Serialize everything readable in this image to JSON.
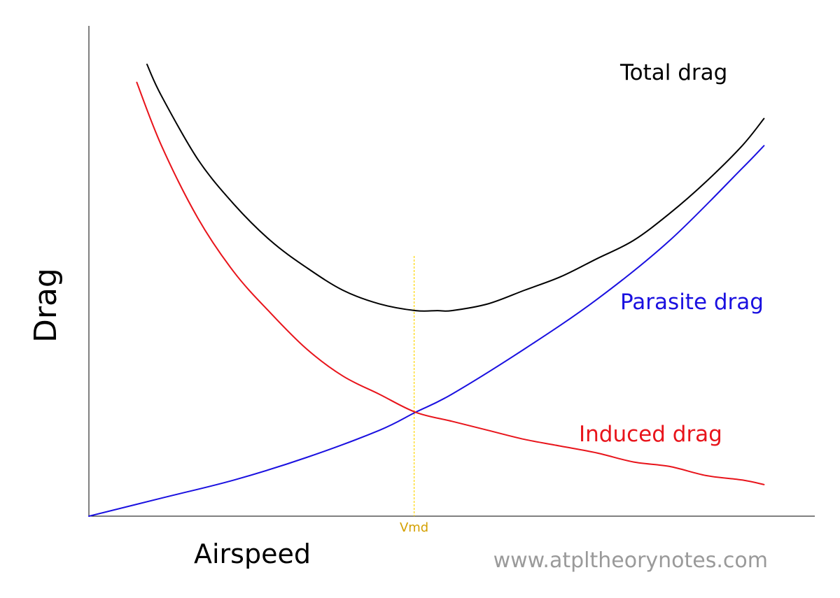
{
  "chart_data": {
    "type": "line",
    "title": "",
    "xlabel": "Airspeed",
    "ylabel": "Drag",
    "xlim": [
      0,
      1
    ],
    "ylim": [
      0,
      1
    ],
    "grid": false,
    "legend": "none",
    "series": [
      {
        "name": "Total drag",
        "color": "#000000",
        "x": [
          0.08,
          0.1,
          0.15,
          0.2,
          0.25,
          0.3,
          0.35,
          0.4,
          0.45,
          0.48,
          0.5,
          0.55,
          0.6,
          0.65,
          0.7,
          0.75,
          0.8,
          0.85,
          0.9,
          0.93
        ],
        "y": [
          1.0,
          0.93,
          0.79,
          0.69,
          0.61,
          0.55,
          0.5,
          0.47,
          0.455,
          0.455,
          0.455,
          0.47,
          0.5,
          0.53,
          0.57,
          0.61,
          0.67,
          0.74,
          0.82,
          0.88
        ]
      },
      {
        "name": "Parasite drag",
        "color": "#1a10e0",
        "x": [
          0.0,
          0.1,
          0.2,
          0.3,
          0.4,
          0.45,
          0.5,
          0.6,
          0.7,
          0.8,
          0.9,
          0.93
        ],
        "y": [
          0.0,
          0.04,
          0.08,
          0.13,
          0.19,
          0.23,
          0.27,
          0.37,
          0.48,
          0.61,
          0.77,
          0.82
        ]
      },
      {
        "name": "Induced drag",
        "color": "#e8141b",
        "x": [
          0.066,
          0.1,
          0.15,
          0.2,
          0.25,
          0.3,
          0.35,
          0.4,
          0.45,
          0.5,
          0.55,
          0.6,
          0.65,
          0.7,
          0.75,
          0.8,
          0.85,
          0.9,
          0.93
        ],
        "y": [
          0.96,
          0.82,
          0.66,
          0.54,
          0.45,
          0.37,
          0.31,
          0.27,
          0.23,
          0.21,
          0.19,
          0.17,
          0.155,
          0.14,
          0.12,
          0.11,
          0.09,
          0.08,
          0.07
        ]
      }
    ],
    "annotations": {
      "vmd": {
        "label": "Vmd",
        "x": 0.448,
        "color": "#d4a000",
        "line_color": "#ffd700"
      },
      "watermark": "www.atpltheorynotes.com"
    }
  }
}
